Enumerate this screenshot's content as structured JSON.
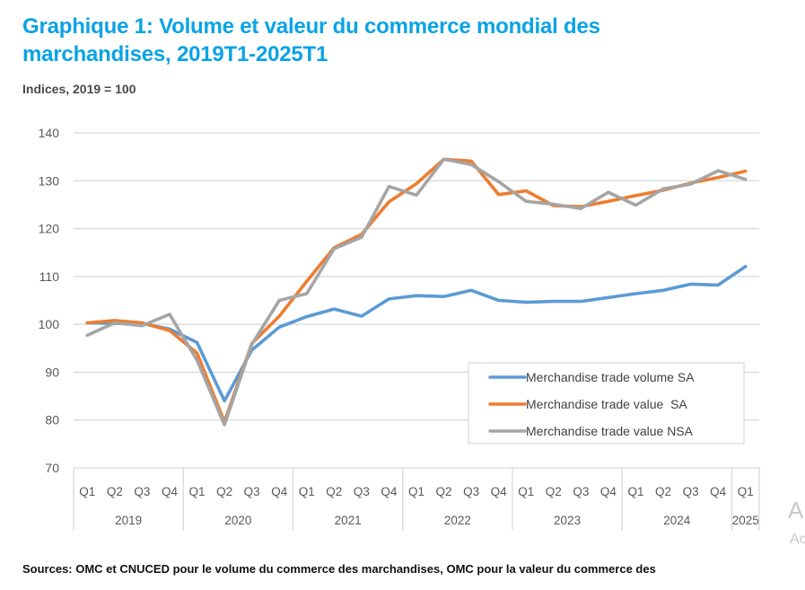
{
  "header": {
    "title": "Graphique 1: Volume et valeur du commerce mondial des marchandises, 2019T1-2025T1",
    "subtitle": "Indices, 2019 = 100"
  },
  "footer": {
    "sources": "Sources: OMC et CNUCED pour le volume du commerce des marchandises, OMC pour la valeur du commerce des"
  },
  "watermark": {
    "line1": "A",
    "line2": "Ac"
  },
  "chart_data": {
    "type": "line",
    "title": "Graphique 1: Volume et valeur du commerce mondial des marchandises, 2019T1-2025T1",
    "subtitle": "Indices, 2019 = 100",
    "xlabel": "",
    "ylabel": "",
    "ylim": [
      70,
      140
    ],
    "yticks": [
      70,
      80,
      90,
      100,
      110,
      120,
      130,
      140
    ],
    "grid": true,
    "legend_position": "bottom-right",
    "x": [
      "2019Q1",
      "2019Q2",
      "2019Q3",
      "2019Q4",
      "2020Q1",
      "2020Q2",
      "2020Q3",
      "2020Q4",
      "2021Q1",
      "2021Q2",
      "2021Q3",
      "2021Q4",
      "2022Q1",
      "2022Q2",
      "2022Q3",
      "2022Q4",
      "2023Q1",
      "2023Q2",
      "2023Q3",
      "2023Q4",
      "2024Q1",
      "2024Q2",
      "2024Q3",
      "2024Q4",
      "2025Q1"
    ],
    "quarter_labels": [
      "Q1",
      "Q2",
      "Q3",
      "Q4",
      "Q1",
      "Q2",
      "Q3",
      "Q4",
      "Q1",
      "Q2",
      "Q3",
      "Q4",
      "Q1",
      "Q2",
      "Q3",
      "Q4",
      "Q1",
      "Q2",
      "Q3",
      "Q4",
      "Q1",
      "Q2",
      "Q3",
      "Q4",
      "Q1"
    ],
    "year_groups": [
      {
        "label": "2019",
        "quarters": 4
      },
      {
        "label": "2020",
        "quarters": 4
      },
      {
        "label": "2021",
        "quarters": 4
      },
      {
        "label": "2022",
        "quarters": 4
      },
      {
        "label": "2023",
        "quarters": 4
      },
      {
        "label": "2024",
        "quarters": 4
      },
      {
        "label": "2025",
        "quarters": 1
      }
    ],
    "series": [
      {
        "name": "Merchandise trade volume SA",
        "color": "#5b9bd5",
        "values": [
          100.3,
          100.2,
          100.2,
          99.0,
          96.2,
          84.0,
          94.6,
          99.4,
          101.6,
          103.2,
          101.7,
          105.3,
          106.0,
          105.8,
          107.1,
          105.0,
          104.6,
          104.8,
          104.8,
          105.6,
          106.4,
          107.1,
          108.4,
          108.2,
          112.1
        ]
      },
      {
        "name": "Merchandise trade value  SA",
        "color": "#ed7d31",
        "values": [
          100.3,
          100.8,
          100.3,
          98.7,
          94.0,
          79.6,
          96.0,
          101.7,
          109.0,
          116.0,
          118.8,
          125.6,
          129.4,
          134.5,
          134.1,
          127.1,
          127.9,
          124.8,
          124.6,
          125.7,
          126.9,
          128.0,
          129.5,
          130.7,
          132.0
        ]
      },
      {
        "name": "Merchandise trade value NSA",
        "color": "#a5a5a5",
        "values": [
          97.7,
          100.3,
          99.7,
          102.1,
          92.5,
          79.0,
          95.8,
          105.0,
          106.4,
          115.8,
          118.2,
          128.8,
          127.0,
          134.5,
          133.4,
          129.8,
          125.7,
          125.1,
          124.2,
          127.6,
          124.9,
          128.3,
          129.3,
          132.1,
          130.3
        ]
      }
    ]
  }
}
